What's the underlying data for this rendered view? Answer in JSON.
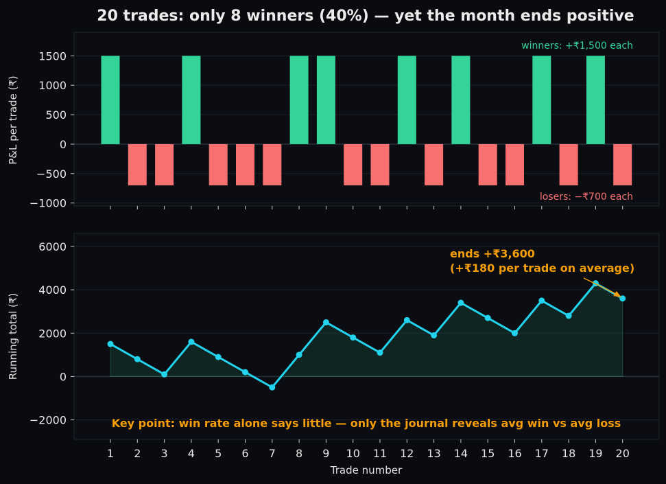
{
  "chart_data": [
    {
      "type": "bar",
      "title": "20 trades: only 8 winners (40%) — yet the month ends positive",
      "xlabel": "",
      "ylabel": "P&L per trade (₹)",
      "ylim": [
        -1050,
        1900
      ],
      "yticks": [
        -1000,
        -500,
        0,
        500,
        1000,
        1500
      ],
      "categories": [
        1,
        2,
        3,
        4,
        5,
        6,
        7,
        8,
        9,
        10,
        11,
        12,
        13,
        14,
        15,
        16,
        17,
        18,
        19,
        20
      ],
      "values": [
        1500,
        -700,
        -700,
        1500,
        -700,
        -700,
        -700,
        1500,
        1500,
        -700,
        -700,
        1500,
        -700,
        1500,
        -700,
        -700,
        1500,
        -700,
        1500,
        -700
      ],
      "colors": {
        "winner": "#34d399",
        "loser": "#f87171"
      },
      "annotations": [
        {
          "text": "winners: +₹1,500 each",
          "color": "#34d399",
          "position": "top-right"
        },
        {
          "text": "losers: −₹700 each",
          "color": "#f87171",
          "position": "bottom-right"
        }
      ],
      "grid": true
    },
    {
      "type": "line",
      "xlabel": "Trade number",
      "ylabel": "Running total (₹)",
      "ylim": [
        -2900,
        6600
      ],
      "yticks": [
        -2000,
        0,
        2000,
        4000,
        6000
      ],
      "x": [
        1,
        2,
        3,
        4,
        5,
        6,
        7,
        8,
        9,
        10,
        11,
        12,
        13,
        14,
        15,
        16,
        17,
        18,
        19,
        20
      ],
      "values": [
        1500,
        800,
        100,
        1600,
        900,
        200,
        -500,
        1000,
        2500,
        1800,
        1100,
        2600,
        1900,
        3400,
        2700,
        2000,
        3500,
        2800,
        4300,
        3600
      ],
      "colors": {
        "line": "#22d3ee",
        "fill": "#34d399",
        "annotation": "#f59e0b"
      },
      "annotations": [
        {
          "text": "ends +₹3,600",
          "text2": "(+₹180 per trade on average)",
          "x": 20,
          "y": 3600
        },
        {
          "text": "Key point: win rate alone says little — only the journal reveals avg win vs avg loss",
          "position": "bottom"
        }
      ],
      "grid": true
    }
  ]
}
